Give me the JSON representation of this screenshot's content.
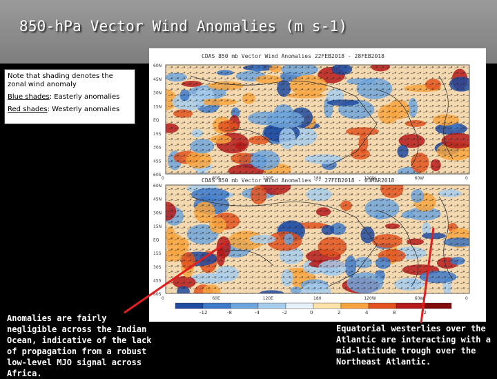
{
  "slide": {
    "title": "850-hPa Vector Wind Anomalies  (m s-1)"
  },
  "panels": {
    "top_title": "CDAS  850 mb  Vector  Wind  Anomalies      22FEB2018  -  28FEB2018",
    "bottom_title": "CDAS  850 mb  Vector  Wind  Anomalies  --  27FEB2018 - 03MAR2018",
    "lat_labels": [
      "60N",
      "45N",
      "30N",
      "15N",
      "EQ",
      "15S",
      "30S",
      "45S",
      "60S"
    ],
    "lon_labels": [
      "0",
      "60E",
      "120E",
      "180",
      "120W",
      "60W",
      "0"
    ]
  },
  "colorbar": {
    "ticks": [
      "-12",
      "-8",
      "-4",
      "-2",
      "0",
      "2",
      "4",
      "8",
      "12"
    ],
    "colors": [
      "#1f4aa0",
      "#3e79c8",
      "#6ea5dc",
      "#a7cdec",
      "#e6f1fa",
      "#fde2a9",
      "#f7a440",
      "#e2521f",
      "#b51a1a",
      "#7f0b0b"
    ]
  },
  "legend_note": {
    "line1": "Note that shading denotes the zonal wind anomaly",
    "line2_label": "Blue shades",
    "line2_rest": ": Easterly anomalies",
    "line3_label": "Red shades",
    "line3_rest": ": Westerly anomalies"
  },
  "annotations": {
    "left": "Anomalies are fairly negligible across the Indian Ocean, indicative of the lack of propagation from a robust low-level MJO signal across Africa.",
    "right": "Equatorial westerlies over the Atlantic are interacting with a mid-latitude trough over the Northeast Atlantic."
  },
  "colors": {
    "arrow": "#e0201f",
    "title_text": "#ffffff"
  }
}
